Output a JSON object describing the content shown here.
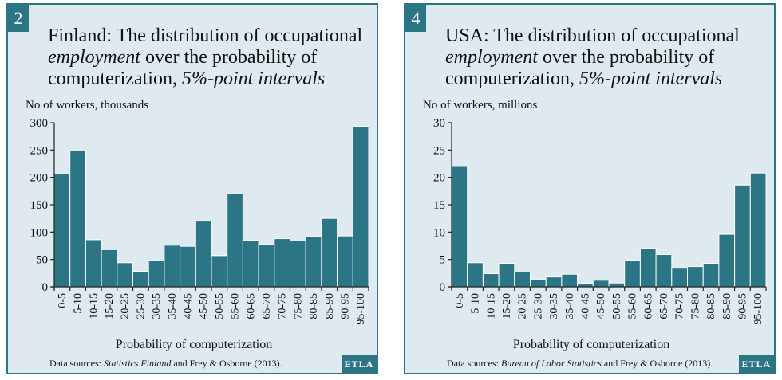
{
  "colors": {
    "panel_bg": "#deeaf0",
    "accent": "#2b7585",
    "bar": "#2b7585",
    "bar_stroke": "#ffffff"
  },
  "panels": [
    {
      "badge": "2",
      "title_line1": "Finland: The distribution of occupational",
      "title_line2_italic": "employment",
      "title_line2_rest": " over the probability of",
      "title_line3_rest": "computerization, ",
      "title_line3_italic": "5%-point intervals",
      "unit_label": "No of workers, thousands",
      "xlabel": "Probability of computerization",
      "footer_prefix": "Data sources: ",
      "footer_italic": "Statistics Finland",
      "footer_suffix": " and Frey & Osborne (2013).",
      "etla": "ETLA"
    },
    {
      "badge": "4",
      "title_line1": "USA: The distribution of occupational",
      "title_line2_italic": "employment",
      "title_line2_rest": " over the probability of",
      "title_line3_rest": "computerization, ",
      "title_line3_italic": "5%-point intervals",
      "unit_label": "No of workers, millions",
      "xlabel": "Probability of computerization",
      "footer_prefix": "Data sources: ",
      "footer_italic": "Bureau of Labor Statistics",
      "footer_suffix": " and Frey & Osborne (2013).",
      "etla": "ETLA"
    }
  ],
  "chart_data": [
    {
      "type": "bar",
      "title": "Finland: The distribution of occupational employment over the probability of computerization, 5%-point intervals",
      "xlabel": "Probability of computerization",
      "ylabel": "No of workers, thousands",
      "ylim": [
        0,
        300
      ],
      "yticks": [
        0,
        50,
        100,
        150,
        200,
        250,
        300
      ],
      "categories": [
        "0-5",
        "5-10",
        "10-15",
        "15-20",
        "20-25",
        "25-30",
        "30-35",
        "35-40",
        "40-45",
        "45-50",
        "50-55",
        "55-60",
        "60-65",
        "65-70",
        "70-75",
        "75-80",
        "80-85",
        "85-90",
        "90-95",
        "95-100"
      ],
      "values": [
        206,
        250,
        86,
        68,
        44,
        28,
        48,
        76,
        74,
        120,
        57,
        170,
        85,
        78,
        88,
        84,
        92,
        125,
        93,
        293
      ]
    },
    {
      "type": "bar",
      "title": "USA: The distribution of occupational employment over the probability of computerization, 5%-point intervals",
      "xlabel": "Probability of computerization",
      "ylabel": "No of workers, millions",
      "ylim": [
        0,
        30
      ],
      "yticks": [
        0,
        5,
        10,
        15,
        20,
        25,
        30
      ],
      "categories": [
        "0-5",
        "5-10",
        "10-15",
        "15-20",
        "20-25",
        "25-30",
        "30-35",
        "35-40",
        "40-45",
        "45-50",
        "50-55",
        "55-60",
        "60-65",
        "65-70",
        "70-75",
        "75-80",
        "80-85",
        "85-90",
        "90-95",
        "95-100"
      ],
      "values": [
        22.0,
        4.4,
        2.4,
        4.3,
        2.7,
        1.4,
        1.8,
        2.3,
        0.6,
        1.2,
        0.7,
        4.8,
        7.0,
        5.9,
        3.4,
        3.7,
        4.3,
        9.6,
        18.6,
        20.8
      ]
    }
  ]
}
